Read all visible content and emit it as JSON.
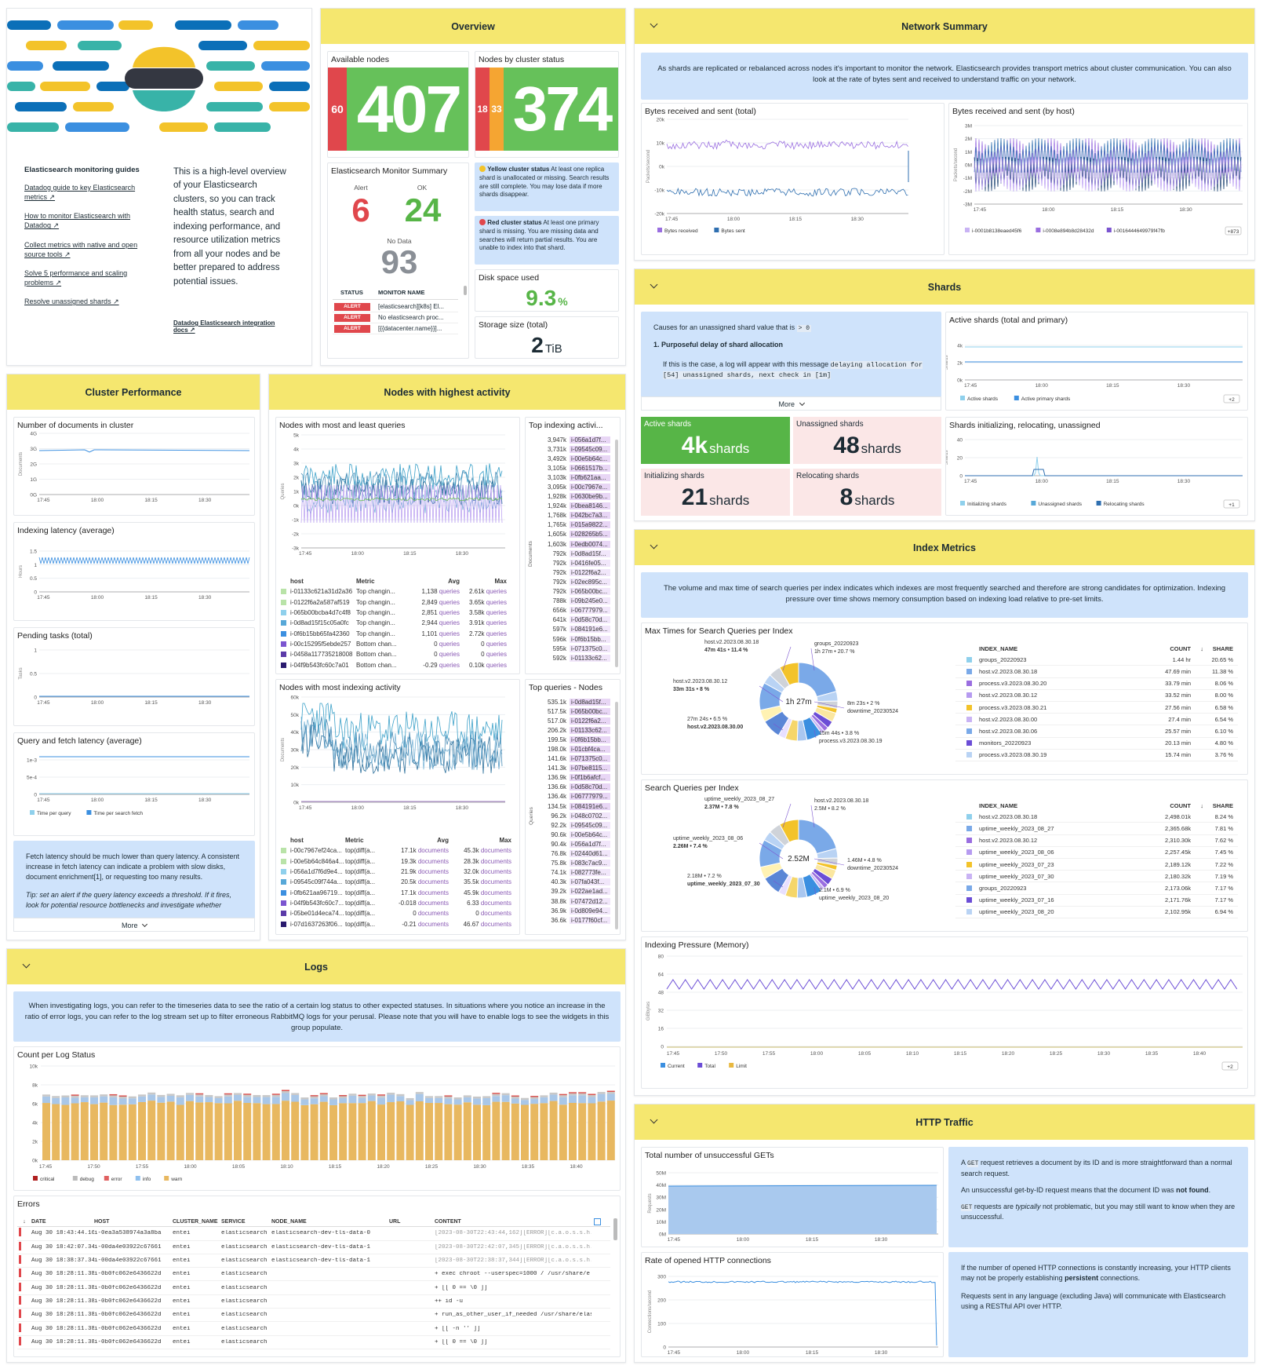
{
  "guides": {
    "title": "Elasticsearch monitoring guides",
    "links": [
      "Datadog guide to key Elasticsearch metrics ↗",
      "How to monitor Elasticsearch with Datadog ↗",
      "Collect metrics with native and open source tools ↗",
      "Solve 5 performance and scaling problems ↗",
      "Resolve unassigned shards ↗"
    ],
    "intro": "This is a high-level overview of your Elasticsearch clusters, so you can track health status, search and indexing performance, and resource utilization metrics from all your nodes and be better prepared to address potential issues.",
    "docs_link": "Datadog Elasticsearch integration docs ↗"
  },
  "overview": {
    "title": "Overview",
    "available_nodes_label": "Available nodes",
    "available_small": "60",
    "available_big": "407",
    "cluster_status_label": "Nodes by cluster status",
    "cluster_small_a": "18",
    "cluster_small_b": "33",
    "cluster_big": "374",
    "monitor_summary": "Elasticsearch Monitor Summary",
    "alert_label": "Alert",
    "alert_value": "6",
    "ok_label": "OK",
    "ok_value": "24",
    "nodata_label": "No Data",
    "nodata_value": "93",
    "col_status": "STATUS",
    "col_monitor": "MONITOR NAME",
    "monitors": [
      {
        "status": "ALERT",
        "name": "[elasticsearch][k8s] El..."
      },
      {
        "status": "ALERT",
        "name": "No elasticsearch proc..."
      },
      {
        "status": "ALERT",
        "name": "[{{datacenter.name}}]..."
      }
    ],
    "yellow_title": "Yellow cluster status",
    "yellow_text": "At least one replica shard is unallocated or missing. Search results are still complete. You may lose data if more shards disappear.",
    "red_title": "Red cluster status",
    "red_text": "At least one primary shard is missing. You are missing data and searches will return partial results. You are unable to index into that shard.",
    "disk_label": "Disk space used",
    "disk_value": "9.3",
    "disk_unit": "%",
    "storage_label": "Storage size (total)",
    "storage_value": "2",
    "storage_unit": "TiB"
  },
  "network": {
    "title": "Network Summary",
    "note": "As shards are replicated or rebalanced across nodes it's important to monitor the network. Elasticsearch provides transport metrics about cluster communication. You can also look at the rate of bytes sent and received to understand traffic on your network.",
    "w1": "Bytes received and sent (total)",
    "w2": "Bytes received and sent (by host)",
    "w1_y": [
      "20k",
      "10k",
      "0k",
      "-10k",
      "-20k"
    ],
    "w2_y": [
      "3M",
      "2M",
      "1M",
      "0M",
      "-1M",
      "-2M",
      "-3M"
    ],
    "w1_ylabel": "Packets/second",
    "w2_ylabel": "Packets/second",
    "times": [
      "17:45",
      "18:00",
      "18:15",
      "18:30"
    ],
    "w1_legend": [
      "Bytes received",
      "Bytes sent"
    ],
    "w2_legend": [
      "i-0001b8138eaed45f6",
      "i-0008e894b8d28432d",
      "i-0016444649979f47fb"
    ],
    "w2_more": "+873"
  },
  "shards": {
    "title": "Shards",
    "note_line1": "Causes for an unassigned shard value that is",
    "note_code": "> 0",
    "note_h": "1. Purposeful delay of shard allocation",
    "note_line2": "If this is the case, a log will appear with this message",
    "note_code2": "delaying allocation for [54] unassigned shards, next check in [1m]",
    "more": "More",
    "active_title": "Active shards (total and primary)",
    "active_y": [
      "4k",
      "2k",
      "0k"
    ],
    "active_ylabel": "Shards",
    "active_legend": [
      "Active shards",
      "Active primary shards"
    ],
    "active_more": "+2",
    "s1_label": "Active shards",
    "s1_val": "4k",
    "s1_unit": "shards",
    "s2_label": "Unassigned shards",
    "s2_val": "48",
    "s2_unit": "shards",
    "s3_label": "Initializing shards",
    "s3_val": "21",
    "s3_unit": "shards",
    "s4_label": "Relocating shards",
    "s4_val": "8",
    "s4_unit": "shards",
    "init_title": "Shards initializing, relocating, unassigned",
    "init_y": [
      "40",
      "20",
      "0"
    ],
    "init_ylabel": "Shards",
    "init_legend": [
      "Initializing shards",
      "Unassigned shards",
      "Relocating shards"
    ],
    "init_more": "+1",
    "times": [
      "17:45",
      "18:00",
      "18:15",
      "18:30"
    ]
  },
  "cluster": {
    "title": "Cluster Performance",
    "c1": "Number of documents in cluster",
    "c1_y": [
      "4G",
      "3G",
      "2G",
      "1G",
      "0G"
    ],
    "c1_ylabel": "Documents",
    "c2": "Indexing latency (average)",
    "c2_y": [
      "1.5",
      "1",
      "0.5",
      "0"
    ],
    "c2_ylabel": "Hours",
    "c3": "Pending tasks (total)",
    "c3_y": [
      "1",
      "0.5",
      "0"
    ],
    "c3_ylabel": "Tasks",
    "c4": "Query and fetch latency (average)",
    "c4_y": [
      "1e-3",
      "5e-4",
      "0"
    ],
    "c4_legend": [
      "Time per query",
      "Time per search fetch"
    ],
    "times": [
      "17:45",
      "18:00",
      "18:15",
      "18:30"
    ],
    "note": "Fetch latency should be much lower than query latency. A consistent increase in fetch latency can indicate a problem with slow disks, document enrichment[1], or requesting too many results.",
    "tip": "Tip: set an alert if the query latency exceeds a threshold. If it fires, look for potential resource bottlenecks and investigate whether",
    "more": "More"
  },
  "nodes": {
    "title": "Nodes with highest activity",
    "q_title": "Nodes with most and least queries",
    "q_y": [
      "5k",
      "4k",
      "3k",
      "2k",
      "1k",
      "0k",
      "-1k",
      "-2k",
      "-3k"
    ],
    "q_ylabel": "Queries",
    "times": [
      "17:45",
      "18:00",
      "18:15",
      "18:30"
    ],
    "q_cols": [
      "host",
      "Metric",
      "Avg",
      "Max"
    ],
    "q_rows": [
      [
        "i-01133c621a31d2a36",
        "Top changin...",
        "1,138 queries",
        "2.61k queries"
      ],
      [
        "i-0122f6a2a587af519",
        "Top changin...",
        "2,849 queries",
        "3.65k queries"
      ],
      [
        "i-065b00bcba4d7c4f8",
        "Top changin...",
        "2,851 queries",
        "3.58k queries"
      ],
      [
        "i-0d8ad15f15c05a0fc",
        "Top changin...",
        "2,944 queries",
        "3.91k queries"
      ],
      [
        "i-0f6b15bb65fa42360",
        "Top changin...",
        "1,101 queries",
        "2.72k queries"
      ],
      [
        "i-00c15295f5ebde257",
        "Bottom chan...",
        "0 queries",
        "0 queries"
      ],
      [
        "i-0458a117735218008",
        "Bottom chan...",
        "0 queries",
        "0 queries"
      ],
      [
        "i-04f9b543fc60c7a01",
        "Bottom chan...",
        "-0.29 queries",
        "0.10k queries"
      ]
    ],
    "ti_title": "Top indexing activi...",
    "ti_ylabel": "Documents",
    "ti_rows": [
      [
        "3,947k",
        "i-056a1d7f..."
      ],
      [
        "3,731k",
        "i-09545c09..."
      ],
      [
        "3,492k",
        "i-00e5b64c..."
      ],
      [
        "3,105k",
        "i-0661517b..."
      ],
      [
        "3,103k",
        "i-0fb621aa..."
      ],
      [
        "3,095k",
        "i-00c7967e..."
      ],
      [
        "1,928k",
        "i-0630be9b..."
      ],
      [
        "1,924k",
        "i-0bea8146..."
      ],
      [
        "1,768k",
        "i-042bc7a3..."
      ],
      [
        "1,765k",
        "i-015a9822..."
      ],
      [
        "1,605k",
        "i-028265b5..."
      ],
      [
        "1,603k",
        "i-0edb0074..."
      ],
      [
        "792k",
        "i-0d8ad15f..."
      ],
      [
        "792k",
        "i-0416fe05..."
      ],
      [
        "792k",
        "i-0122f6a2..."
      ],
      [
        "792k",
        "i-02ec895c..."
      ],
      [
        "792k",
        "i-065b00bc..."
      ],
      [
        "788k",
        "i-09b245e0..."
      ],
      [
        "656k",
        "i-06777979..."
      ],
      [
        "641k",
        "i-0d58c70d..."
      ],
      [
        "597k",
        "i-084191e6..."
      ],
      [
        "596k",
        "i-0f6b15bb..."
      ],
      [
        "595k",
        "i-071375c0..."
      ],
      [
        "592k",
        "i-01133c62..."
      ]
    ],
    "ix_title": "Nodes with most indexing activity",
    "ix_y": [
      "60k",
      "50k",
      "40k",
      "30k",
      "20k",
      "10k",
      "0k"
    ],
    "ix_ylabel": "Documents",
    "ix_cols": [
      "host",
      "Metric",
      "Avg",
      "Max"
    ],
    "ix_rows": [
      [
        "i-00c7967ef24ca...",
        "top(diff(a...",
        "17.1k documents",
        "45.3k documents"
      ],
      [
        "i-00e5b64c846a4...",
        "top(diff(a...",
        "19.3k documents",
        "28.3k documents"
      ],
      [
        "i-056a1d7f6d9e4...",
        "top(diff(a...",
        "21.9k documents",
        "32.0k documents"
      ],
      [
        "i-09545c09f744a...",
        "top(diff(a...",
        "20.5k documents",
        "35.5k documents"
      ],
      [
        "i-0fb621aa96719...",
        "top(diff(a...",
        "17.1k documents",
        "45.9k documents"
      ],
      [
        "i-04f9b543fc60c7...",
        "top(diff(a...",
        "-0.018 documents",
        "6.33 documents"
      ],
      [
        "i-05be01d4eca74...",
        "top(diff(a...",
        "0 documents",
        "0 documents"
      ],
      [
        "i-07d1637263f06...",
        "top(diff(a...",
        "-0.21 documents",
        "46.67 documents"
      ]
    ],
    "tq_title": "Top queries - Nodes",
    "tq_ylabel": "Queries",
    "tq_rows": [
      [
        "535.1k",
        "i-0d8ad15f..."
      ],
      [
        "517.5k",
        "i-065b00bc..."
      ],
      [
        "517.0k",
        "i-0122f6a2..."
      ],
      [
        "206.2k",
        "i-01133c62..."
      ],
      [
        "199.5k",
        "i-0f6b15bb..."
      ],
      [
        "198.0k",
        "i-01cbf4ca..."
      ],
      [
        "141.6k",
        "i-071375c0..."
      ],
      [
        "141.3k",
        "i-07be8115..."
      ],
      [
        "136.9k",
        "i-0f1b6afcf..."
      ],
      [
        "136.6k",
        "i-0d58c70d..."
      ],
      [
        "136.4k",
        "i-06777979..."
      ],
      [
        "134.5k",
        "i-084191e6..."
      ],
      [
        "96.2k",
        "i-048c0702..."
      ],
      [
        "92.2k",
        "i-09545c09..."
      ],
      [
        "90.6k",
        "i-00e5b64c..."
      ],
      [
        "90.4k",
        "i-056a1d7f..."
      ],
      [
        "76.8k",
        "i-02440d61..."
      ],
      [
        "75.8k",
        "i-083c7ac9..."
      ],
      [
        "74.1k",
        "i-082773fe..."
      ],
      [
        "40.3k",
        "i-07fa043f..."
      ],
      [
        "39.2k",
        "i-022ae1ad..."
      ],
      [
        "38.8k",
        "i-07472d12..."
      ],
      [
        "36.9k",
        "i-0d809e94..."
      ],
      [
        "36.6k",
        "i-0177f60cf..."
      ]
    ]
  },
  "index": {
    "title": "Index Metrics",
    "note": "The volume and max time of search queries per index indicates which indexes are most frequently searched and therefore are strong candidates for optimization. Indexing pressure over time shows memory consumption based on indexing load relative to pre-set limits.",
    "w1": "Max Times for Search Queries per Index",
    "w1_center": "1h 27m",
    "w1_labels": [
      [
        "host.v2.2023.08.30.18",
        "47m 41s • 11.4 %"
      ],
      [
        "groups_20220923",
        "1h 27m • 20.7 %"
      ],
      [
        "host.v2.2023.08.30.12",
        "33m 31s • 8 %"
      ],
      [
        "8m 23s • 2 %",
        "downtime_20230524"
      ],
      [
        "27m 24s • 6.5 %",
        "host.v2.2023.08.30.00"
      ],
      [
        "15m 44s • 3.8 %",
        "process.v3.2023.08.30.19"
      ]
    ],
    "cols": [
      "INDEX_NAME",
      "COUNT",
      "SHARE"
    ],
    "t1": [
      [
        "groups_20220923",
        "1.44 hr",
        "20.65 %"
      ],
      [
        "host.v2.2023.08.30.18",
        "47.69 min",
        "11.38 %"
      ],
      [
        "process.v3.2023.08.30.20",
        "33.79 min",
        "8.06 %"
      ],
      [
        "host.v2.2023.08.30.12",
        "33.52 min",
        "8.00 %"
      ],
      [
        "process.v3.2023.08.30.21",
        "27.56 min",
        "6.58 %"
      ],
      [
        "host.v2.2023.08.30.00",
        "27.4 min",
        "6.54 %"
      ],
      [
        "host.v2.2023.08.30.06",
        "25.57 min",
        "6.10 %"
      ],
      [
        "monitors_20220923",
        "20.13 min",
        "4.80 %"
      ],
      [
        "process.v3.2023.08.30.19",
        "15.74 min",
        "3.76 %"
      ]
    ],
    "w2": "Search Queries per Index",
    "w2_center": "2.52M",
    "w2_labels": [
      [
        "uptime_weekly_2023_08_27",
        "2.37M • 7.8 %"
      ],
      [
        "host.v2.2023.08.30.18",
        "2.5M • 8.2 %"
      ],
      [
        "uptime_weekly_2023_08_06",
        "2.26M • 7.4 %"
      ],
      [
        "1.46M • 4.8 %",
        "downtime_20230524"
      ],
      [
        "2.18M • 7.2 %",
        "uptime_weekly_2023_07_30"
      ],
      [
        "2.1M • 6.9 %",
        "uptime_weekly_2023_08_20"
      ]
    ],
    "t2": [
      [
        "host.v2.2023.08.30.18",
        "2,498.01k",
        "8.24 %"
      ],
      [
        "uptime_weekly_2023_08_27",
        "2,365.68k",
        "7.81 %"
      ],
      [
        "host.v2.2023.08.30.12",
        "2,310.30k",
        "7.62 %"
      ],
      [
        "uptime_weekly_2023_08_06",
        "2,257.45k",
        "7.45 %"
      ],
      [
        "uptime_weekly_2023_07_23",
        "2,189.12k",
        "7.22 %"
      ],
      [
        "uptime_weekly_2023_07_30",
        "2,180.32k",
        "7.19 %"
      ],
      [
        "groups_20220923",
        "2,173.06k",
        "7.17 %"
      ],
      [
        "uptime_weekly_2023_07_16",
        "2,171.76k",
        "7.17 %"
      ],
      [
        "uptime_weekly_2023_08_20",
        "2,102.95k",
        "6.94 %"
      ]
    ],
    "w3": "Indexing Pressure (Memory)",
    "w3_y": [
      "80",
      "64",
      "48",
      "32",
      "16",
      "0"
    ],
    "w3_ylabel": "GiBbytes",
    "w3_x": [
      "17:45",
      "17:50",
      "17:55",
      "18:00",
      "18:05",
      "18:10",
      "18:15",
      "18:20",
      "18:25",
      "18:30",
      "18:35",
      "18:40"
    ],
    "w3_legend": [
      "Current",
      "Total",
      "Limit"
    ],
    "w3_more": "+2"
  },
  "logs": {
    "title": "Logs",
    "note": "When investigating logs, you can refer to the timeseries data to see the ratio of a certain log status to other expected statuses. In situations where you notice an increase in the ratio of error logs, you can refer to the log stream set up to filter erroneous RabbitMQ logs for your perusal. Please note that you will have to enable logs to see the widgets in this group populate.",
    "w1": "Count per Log Status",
    "y": [
      "10k",
      "8k",
      "6k",
      "4k",
      "2k",
      "0k"
    ],
    "x": [
      "17:45",
      "17:50",
      "17:55",
      "18:00",
      "18:05",
      "18:10",
      "18:15",
      "18:20",
      "18:25",
      "18:30",
      "18:35",
      "18:40"
    ],
    "legend": [
      "critical",
      "debug",
      "error",
      "info",
      "warn"
    ],
    "errors": "Errors",
    "cols": [
      "DATE",
      "HOST",
      "CLUSTER_NAME",
      "SERVICE",
      "NODE_NAME",
      "URL",
      "CONTENT"
    ],
    "rows": [
      [
        "Aug 30 18:43:44.162",
        "i-0ea3a538974a3a8ba",
        "entei",
        "elasticsearch",
        "elasticsearch-dev-tls-data-0",
        "",
        "[2023-08-30T22:43:44,162][ERROR][c.a.o.s.s.h.n..."
      ],
      [
        "Aug 30 18:42:07.345",
        "i-00da4e03922c67661",
        "entei",
        "elasticsearch",
        "elasticsearch-dev-tls-data-1",
        "",
        "[2023-08-30T22:42:07,345][ERROR][c.a.o.s.s.h.n..."
      ],
      [
        "Aug 30 18:38:37.344",
        "i-00da4e03922c67661",
        "entei",
        "elasticsearch",
        "elasticsearch-dev-tls-data-1",
        "",
        "[2023-08-30T22:38:37,344][ERROR][c.a.o.s.s.h.n..."
      ],
      [
        "Aug 30 18:28:11.380",
        "i-0b0fc062e6436622d",
        "entei",
        "elasticsearch",
        "",
        "",
        "+ exec chroot --userspec=1000 / /usr/share/ela..."
      ],
      [
        "Aug 30 18:28:11.380",
        "i-0b0fc062e6436622d",
        "entei",
        "elasticsearch",
        "",
        "",
        "+ [[ 0 == \\0 ]]"
      ],
      [
        "Aug 30 18:28:11.380",
        "i-0b0fc062e6436622d",
        "entei",
        "elasticsearch",
        "",
        "",
        "++ id -u"
      ],
      [
        "Aug 30 18:28:11.380",
        "i-0b0fc062e6436622d",
        "entei",
        "elasticsearch",
        "",
        "",
        "+ run_as_other_user_if_needed /usr/share/elast..."
      ],
      [
        "Aug 30 18:28:11.380",
        "i-0b0fc062e6436622d",
        "entei",
        "elasticsearch",
        "",
        "",
        "+ [[ -n '' ]]"
      ],
      [
        "Aug 30 18:28:11.380",
        "i-0b0fc062e6436622d",
        "entei",
        "elasticsearch",
        "",
        "",
        "+ [[ 0 == \\0 ]]"
      ]
    ]
  },
  "http": {
    "title": "HTTP Traffic",
    "w1": "Total number of unsuccessful GETs",
    "w1_y": [
      "50M",
      "40M",
      "30M",
      "20M",
      "10M",
      "0M"
    ],
    "w1_ylabel": "Requests",
    "w2": "Rate of opened HTTP connections",
    "w2_y": [
      "300",
      "200",
      "100",
      "0"
    ],
    "w2_ylabel": "Connections/second",
    "times": [
      "17:45",
      "18:00",
      "18:15",
      "18:30"
    ],
    "n1_a1": "A",
    "n1_code": "GET",
    "n1_a2": "request retrieves a document by its ID and is more straightforward than a normal search request.",
    "n1_b1": "An unsuccessful get-by-ID request means that the document ID was",
    "n1_b2": "not found",
    "n1_c2": "requests are",
    "n1_c3": "typically",
    "n1_c4": "not problematic, but you may still want to know when they are unsuccessful.",
    "n2_a1": "If the number of opened HTTP connections is constantly increasing, your HTTP clients may not be properly establishing",
    "n2_a2": "persistent",
    "n2_a3": "connections.",
    "n2_b": "Requests sent in any language (excluding Java) will communicate with Elasticsearch using a RESTful API over HTTP."
  }
}
